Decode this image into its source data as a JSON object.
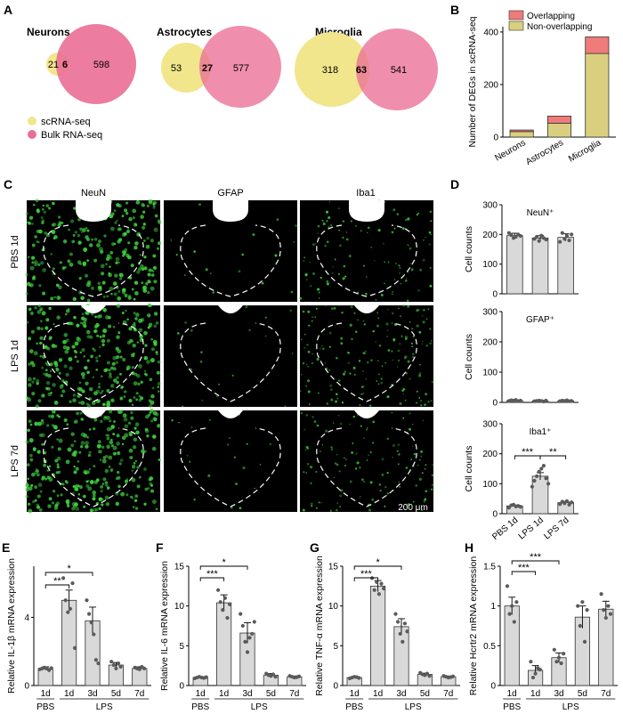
{
  "panel_letters": [
    "A",
    "B",
    "C",
    "D",
    "E",
    "F",
    "G",
    "H"
  ],
  "colors": {
    "sc": "#f2e68c",
    "bulk": "#ea6f96",
    "overlap_bar": "#ef7b7b",
    "nonoverlap_bar": "#d9cf7f",
    "bar_gray": "#d9d9d9",
    "micro_green": "#3fd13f"
  },
  "venn": {
    "legend": [
      "scRNA-seq",
      "Bulk RNA-seq"
    ],
    "diagrams": [
      {
        "title": "Neurons",
        "sc_only": "21",
        "overlap": "6",
        "bulk_only": "598"
      },
      {
        "title": "Astrocytes",
        "sc_only": "53",
        "overlap": "27",
        "bulk_only": "577"
      },
      {
        "title": "Microglia",
        "sc_only": "318",
        "overlap": "63",
        "bulk_only": "541"
      }
    ]
  },
  "micro": {
    "columns": [
      "NeuN",
      "GFAP",
      "Iba1"
    ],
    "rows": [
      "PBS 1d",
      "LPS 1d",
      "LPS 7d"
    ],
    "scale_bar": "200 μm"
  },
  "chart_data": [
    {
      "panel": "B",
      "type": "bar",
      "stacked": true,
      "categories": [
        "Neurons",
        "Astrocytes",
        "Microglia"
      ],
      "series": [
        {
          "name": "Non-overlapping",
          "values": [
            21,
            53,
            318
          ]
        },
        {
          "name": "Overlapping",
          "values": [
            6,
            27,
            63
          ]
        }
      ],
      "ylabel": "Number of DEGs in scRNA-seq",
      "ylim": [
        0,
        420
      ],
      "yticks": [
        "0",
        "200",
        "400"
      ],
      "legend": "top"
    },
    {
      "panel": "D1",
      "type": "bar",
      "title": "NeuN⁺",
      "categories": [
        "PBS 1d",
        "LPS 1d",
        "LPS 7d"
      ],
      "values": [
        196,
        188,
        190
      ],
      "errors": [
        8,
        8,
        12
      ],
      "points": [
        [
          205,
          198,
          188,
          192,
          200,
          195
        ],
        [
          185,
          192,
          178,
          196,
          188,
          183
        ],
        [
          175,
          205,
          185,
          195,
          180,
          200
        ]
      ],
      "ylabel": "Cell counts",
      "ylim": [
        0,
        300
      ],
      "yticks": [
        "0",
        "100",
        "200",
        "300"
      ]
    },
    {
      "panel": "D2",
      "type": "bar",
      "title": "GFAP⁺",
      "categories": [
        "PBS 1d",
        "LPS 1d",
        "LPS 7d"
      ],
      "values": [
        6,
        5,
        5
      ],
      "errors": [
        1,
        1,
        1
      ],
      "points": [
        [
          5,
          7,
          6,
          8,
          4,
          6
        ],
        [
          4,
          5,
          6,
          5,
          3,
          6
        ],
        [
          4,
          6,
          5,
          7,
          4,
          5
        ]
      ],
      "ylabel": "Cell counts",
      "ylim": [
        0,
        300
      ],
      "yticks": [
        "0",
        "100",
        "200",
        "300"
      ]
    },
    {
      "panel": "D3",
      "type": "bar",
      "title": "Iba1⁺",
      "categories": [
        "PBS 1d",
        "LPS 1d",
        "LPS 7d"
      ],
      "values": [
        26,
        125,
        37
      ],
      "errors": [
        3,
        12,
        4
      ],
      "points": [
        [
          20,
          28,
          30,
          24,
          26,
          23
        ],
        [
          90,
          110,
          125,
          140,
          150,
          160,
          118,
          100
        ],
        [
          32,
          40,
          35,
          42,
          30,
          38
        ]
      ],
      "ylabel": "Cell counts",
      "ylim": [
        0,
        300
      ],
      "yticks": [
        "0",
        "100",
        "200",
        "300"
      ],
      "sig": [
        {
          "from": 0,
          "to": 1,
          "label": "***"
        },
        {
          "from": 1,
          "to": 2,
          "label": "**"
        }
      ]
    },
    {
      "panel": "E",
      "type": "bar",
      "categories": [
        "1d",
        "1d",
        "3d",
        "5d",
        "7d"
      ],
      "groups": [
        "PBS",
        "LPS"
      ],
      "values": [
        1,
        5.0,
        3.8,
        1.2,
        1.0
      ],
      "errors": [
        0.1,
        0.6,
        0.8,
        0.15,
        0.1
      ],
      "points": [
        [
          0.95,
          1.0,
          1.05,
          1.0,
          0.9,
          1.02
        ],
        [
          6.3,
          5.0,
          4.3,
          4.5,
          6.0,
          2.2
        ],
        [
          5.0,
          4.2,
          3.7,
          3.0,
          1.5,
          1.3
        ],
        [
          1.4,
          1.2,
          1.0,
          1.3,
          1.1
        ],
        [
          1.05,
          1.0,
          0.95,
          1.1,
          1.0
        ]
      ],
      "ylabel": "Relative IL-1β mRNA expression",
      "ylim": [
        0,
        7
      ],
      "yticks": [
        "0",
        "4",
        "8"
      ],
      "ytick_values": [
        0,
        4,
        8
      ],
      "sig": [
        {
          "from": 0,
          "to": 1,
          "label": "**"
        },
        {
          "from": 0,
          "to": 2,
          "label": "*"
        }
      ]
    },
    {
      "panel": "F",
      "type": "bar",
      "categories": [
        "1d",
        "1d",
        "3d",
        "5d",
        "7d"
      ],
      "groups": [
        "PBS",
        "LPS"
      ],
      "values": [
        1,
        10.4,
        6.6,
        1.3,
        1.1
      ],
      "errors": [
        0.1,
        1.0,
        1.3,
        0.2,
        0.1
      ],
      "points": [
        [
          0.9,
          1.0,
          1.1,
          1.0,
          0.95,
          1.05
        ],
        [
          12.0,
          10.5,
          9.5,
          11.0,
          8.5,
          10.2
        ],
        [
          9.0,
          7.5,
          5.5,
          4.2,
          6.0,
          6.5,
          8.0
        ],
        [
          1.5,
          1.3,
          1.2,
          1.4,
          1.1
        ],
        [
          1.2,
          1.1,
          1.0,
          1.05,
          1.15
        ]
      ],
      "ylabel": "Relative IL-6 mRNA expression",
      "ylim": [
        0,
        15
      ],
      "yticks": [
        "0",
        "5",
        "10",
        "15"
      ],
      "ytick_values": [
        0,
        5,
        10,
        15
      ],
      "sig": [
        {
          "from": 0,
          "to": 1,
          "label": "***"
        },
        {
          "from": 0,
          "to": 2,
          "label": "*"
        }
      ]
    },
    {
      "panel": "G",
      "type": "bar",
      "categories": [
        "1d",
        "1d",
        "3d",
        "5d",
        "7d"
      ],
      "groups": [
        "PBS",
        "LPS"
      ],
      "values": [
        1,
        12.5,
        7.4,
        1.4,
        1.1
      ],
      "errors": [
        0.1,
        0.7,
        1.0,
        0.15,
        0.1
      ],
      "points": [
        [
          0.9,
          1.0,
          1.1,
          1.05,
          0.95
        ],
        [
          13.5,
          12.0,
          13.0,
          11.5,
          12.8,
          12.2
        ],
        [
          9.0,
          8.0,
          6.5,
          5.5,
          7.8,
          6.8
        ],
        [
          1.6,
          1.4,
          1.3,
          1.5,
          1.2
        ],
        [
          1.2,
          1.1,
          1.0,
          1.05,
          1.15
        ]
      ],
      "ylabel": "Relative TNF-α mRNA expression",
      "ylim": [
        0,
        15
      ],
      "yticks": [
        "0",
        "5",
        "10",
        "15"
      ],
      "ytick_values": [
        0,
        5,
        10,
        15
      ],
      "sig": [
        {
          "from": 0,
          "to": 1,
          "label": "***"
        },
        {
          "from": 0,
          "to": 2,
          "label": "*"
        }
      ]
    },
    {
      "panel": "H",
      "type": "bar",
      "categories": [
        "1d",
        "1d",
        "3d",
        "5d",
        "7d"
      ],
      "groups": [
        "PBS",
        "LPS"
      ],
      "values": [
        1.0,
        0.19,
        0.35,
        0.86,
        0.96
      ],
      "errors": [
        0.11,
        0.06,
        0.06,
        0.14,
        0.1
      ],
      "points": [
        [
          1.25,
          0.9,
          1.0,
          0.8,
          1.05
        ],
        [
          0.3,
          0.1,
          0.15,
          0.22,
          0.2
        ],
        [
          0.45,
          0.3,
          0.35,
          0.28,
          0.4
        ],
        [
          1.0,
          0.75,
          1.05,
          0.55,
          0.95
        ],
        [
          1.15,
          0.95,
          0.85,
          1.0,
          0.9
        ]
      ],
      "ylabel": "Relative Hcrtr2 mRNA expression",
      "ylim": [
        0,
        1.5
      ],
      "yticks": [
        "0",
        "0.5",
        "1",
        "1.5"
      ],
      "ytick_values": [
        0,
        0.5,
        1,
        1.5
      ],
      "sig": [
        {
          "from": 0,
          "to": 1,
          "label": "***"
        },
        {
          "from": 0,
          "to": 2,
          "label": "***"
        }
      ]
    }
  ]
}
